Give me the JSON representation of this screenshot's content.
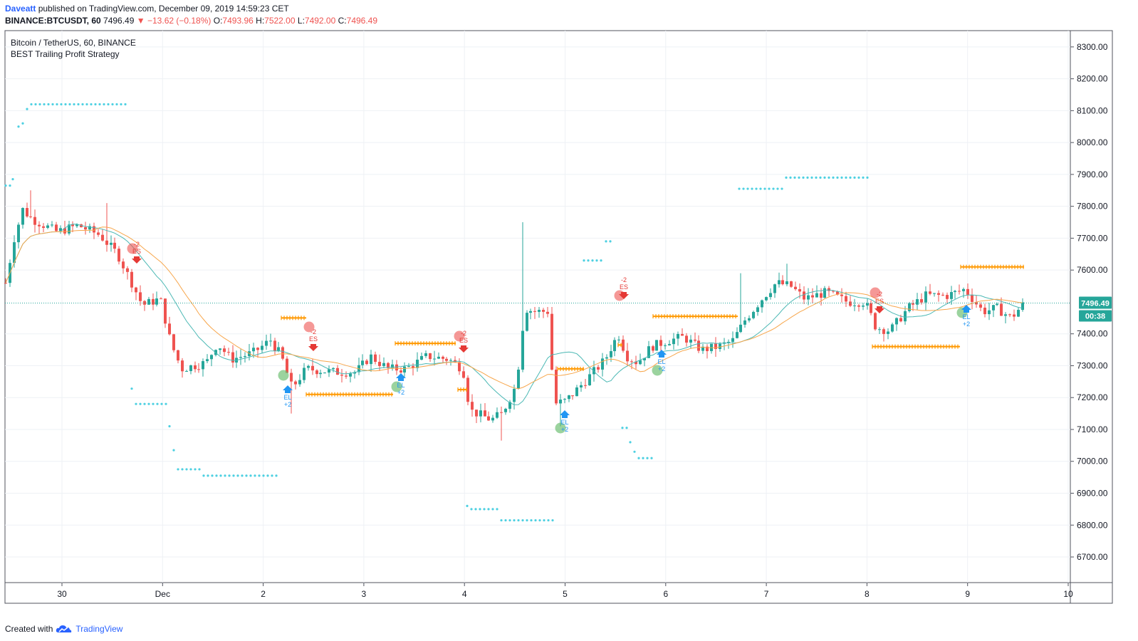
{
  "header": {
    "author": "Daveatt",
    "published_text": "published on TradingView.com, December 09, 2019 14:59:23 CET",
    "symbol": "BINANCE:BTCUSDT, 60",
    "last": "7496.49",
    "change_arrow": "▼",
    "change": "−13.62 (−0.18%)",
    "o_label": "O:",
    "o": "7493.96",
    "h_label": "H:",
    "h": "7522.00",
    "l_label": "L:",
    "l": "7492.00",
    "c_label": "C:",
    "c": "7496.49"
  },
  "legend": {
    "title": "Bitcoin / TetherUS, 60, BINANCE",
    "strategy": "BEST Trailing Profit Strategy"
  },
  "price_axis": {
    "ticks": [
      "8300.00",
      "8200.00",
      "8100.00",
      "8000.00",
      "7900.00",
      "7800.00",
      "7700.00",
      "7600.00",
      "7400.00",
      "7300.00",
      "7200.00",
      "7100.00",
      "7000.00",
      "6900.00",
      "6800.00",
      "6700.00"
    ],
    "last_price_label": "7496.49",
    "countdown": "00:38"
  },
  "time_axis": {
    "ticks": [
      "30",
      "Dec",
      "2",
      "3",
      "4",
      "5",
      "6",
      "7",
      "8",
      "9",
      "10"
    ]
  },
  "footer": {
    "created_with": "Created with",
    "brand": "TradingView",
    "logo_icon": "tradingview-cloud-icon"
  },
  "colors": {
    "up": "#26a69a",
    "down": "#ef5350",
    "ma_fast": "#4bb8b4",
    "ma_slow": "#f7a64b",
    "trail_dots": "#4dd0e1",
    "stop_marks": "#ff9800",
    "long_circle": "#66bb6a",
    "short_circle": "#ef5350",
    "long_arrow": "#2196f3",
    "short_arrow": "#e53935",
    "last_price": "#26a69a"
  },
  "chart_data": {
    "type": "candlestick",
    "symbol": "BTCUSDT",
    "interval": "60",
    "ylim": [
      6650,
      8350
    ],
    "last_price": 7496.49,
    "key_levels": {
      "start_close": 7530,
      "early_high": 7850,
      "drop_low_dec1": 7210,
      "dec4_low": 7060,
      "dec4_spike_high": 7750,
      "dec5_low": 7100,
      "dec7_high": 7620,
      "dec8_low": 7390,
      "end_close": 7496.49
    },
    "signals": [
      {
        "type": "ES",
        "label": "-2",
        "date": "Nov 30"
      },
      {
        "type": "EL",
        "label": "+2",
        "date": "Dec 2"
      },
      {
        "type": "ES",
        "label": "-2",
        "date": "Dec 2"
      },
      {
        "type": "EL",
        "label": "+2",
        "date": "Dec 3"
      },
      {
        "type": "ES",
        "label": "-2",
        "date": "Dec 4"
      },
      {
        "type": "EL",
        "label": "+2",
        "date": "Dec 5"
      },
      {
        "type": "ES",
        "label": "-2",
        "date": "Dec 5"
      },
      {
        "type": "EL",
        "label": "+2",
        "date": "Dec 6"
      },
      {
        "type": "ES",
        "label": "-2",
        "date": "Dec 8"
      },
      {
        "type": "EL",
        "label": "+2",
        "date": "Dec 9"
      }
    ]
  }
}
